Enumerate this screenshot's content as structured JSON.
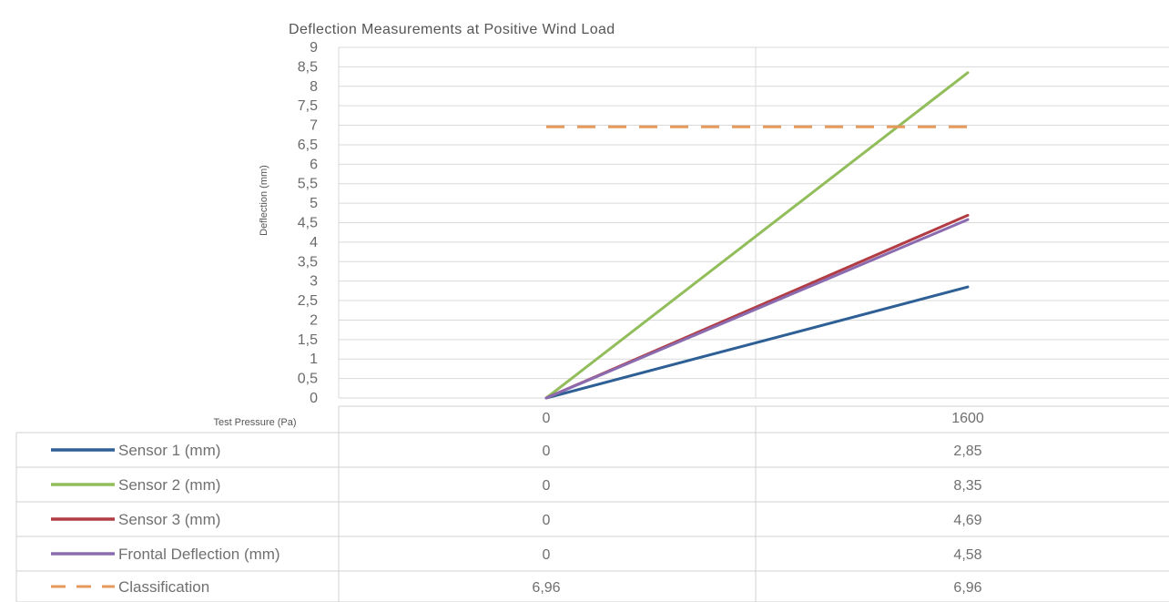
{
  "chart_data": {
    "type": "line",
    "title": "Deflection Measurements at Positive Wind Load",
    "ylabel": "Deflection (mm)",
    "xlabel": "Test Pressure (Pa)",
    "ylim": [
      0,
      9
    ],
    "yticks": [
      "0",
      "0,5",
      "1",
      "1,5",
      "2",
      "2,5",
      "3",
      "3,5",
      "4",
      "4,5",
      "5",
      "5,5",
      "6",
      "6,5",
      "7",
      "7,5",
      "8",
      "8,5",
      "9"
    ],
    "categories": [
      "0",
      "1600"
    ],
    "grid": true,
    "legend": "data-table-below",
    "series": [
      {
        "name": "Sensor 1 (mm)",
        "values": [
          0,
          2.85
        ],
        "labels": [
          "0",
          "2,85"
        ],
        "color": "#2e5f95",
        "dash": "solid"
      },
      {
        "name": "Sensor 2 (mm)",
        "values": [
          0,
          8.35
        ],
        "labels": [
          "0",
          "8,35"
        ],
        "color": "#92bd5b",
        "dash": "solid"
      },
      {
        "name": "Sensor 3 (mm)",
        "values": [
          0,
          4.69
        ],
        "labels": [
          "0",
          "4,69"
        ],
        "color": "#b23c44",
        "dash": "solid"
      },
      {
        "name": "Frontal Deflection (mm)",
        "values": [
          0,
          4.58
        ],
        "labels": [
          "0",
          "4,58"
        ],
        "color": "#8a6bb0",
        "dash": "solid"
      },
      {
        "name": "Classification",
        "values": [
          6.96,
          6.96
        ],
        "labels": [
          "6,96",
          "6,96"
        ],
        "color": "#e59a5c",
        "dash": "dashed"
      }
    ]
  }
}
